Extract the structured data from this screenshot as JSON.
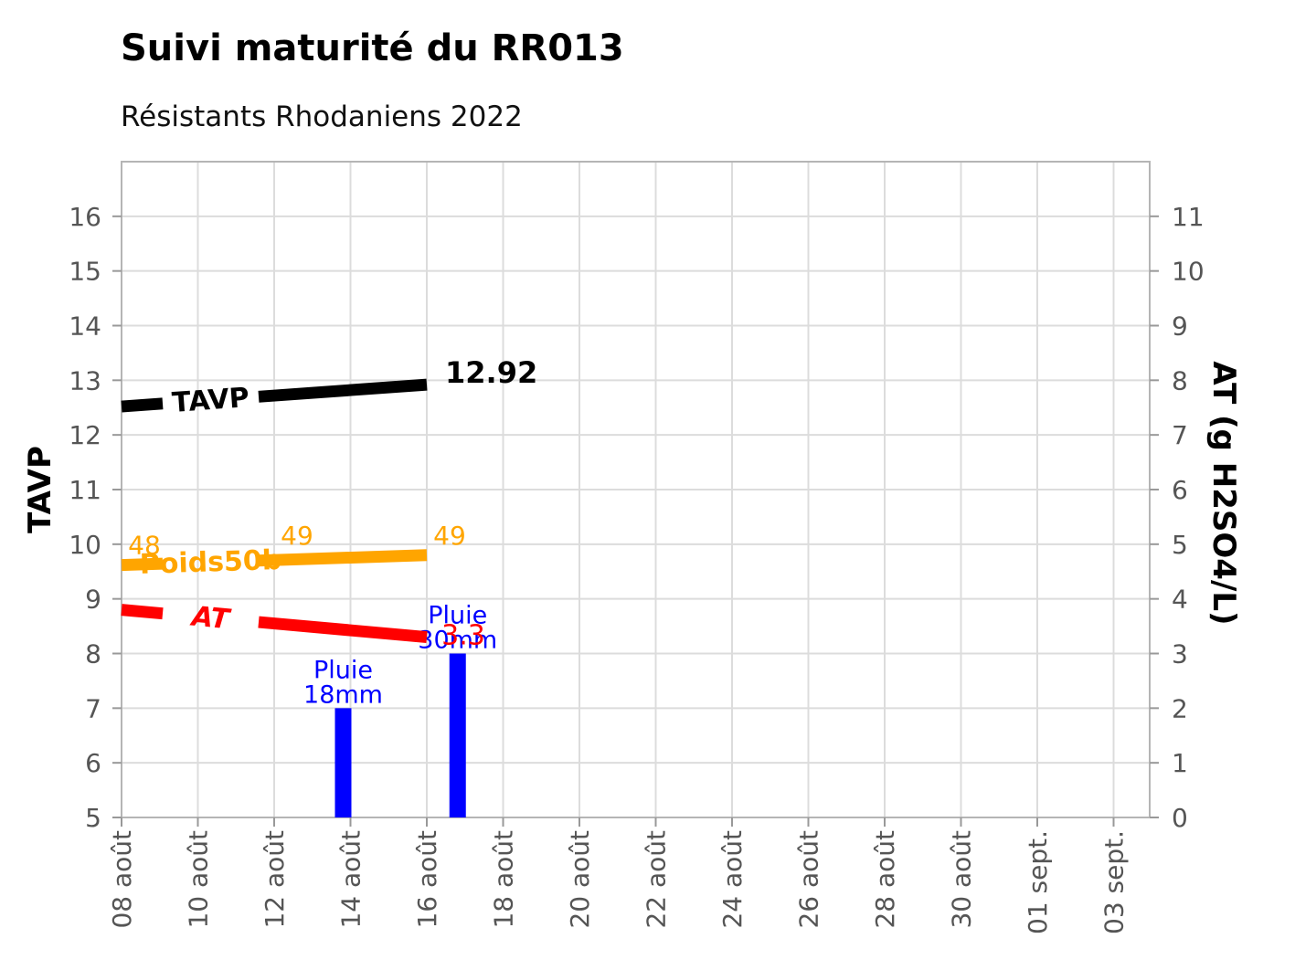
{
  "chart_data": {
    "type": "line",
    "title": "Suivi maturité du RR013",
    "subtitle": "Résistants Rhodaniens 2022",
    "ylabel": "TAVP",
    "y2label": "AT (g H2SO4/L)",
    "ylim": [
      5,
      17
    ],
    "y2lim": [
      0,
      12
    ],
    "yticks": [
      5,
      6,
      7,
      8,
      9,
      10,
      11,
      12,
      13,
      14,
      15,
      16
    ],
    "y2ticks": [
      0,
      1,
      2,
      3,
      4,
      5,
      6,
      7,
      8,
      9,
      10,
      11
    ],
    "xlim": [
      "2022-08-08",
      "2022-09-04"
    ],
    "xticks": [
      "2022-08-08",
      "2022-08-10",
      "2022-08-12",
      "2022-08-14",
      "2022-08-16",
      "2022-08-18",
      "2022-08-20",
      "2022-08-22",
      "2022-08-24",
      "2022-08-26",
      "2022-08-28",
      "2022-08-30",
      "2022-09-01",
      "2022-09-03"
    ],
    "xtick_labels": [
      "08 août",
      "10 août",
      "12 août",
      "14 août",
      "16 août",
      "18 août",
      "20 août",
      "22 août",
      "24 août",
      "26 août",
      "28 août",
      "30 août",
      "01 sept.",
      "03 sept."
    ],
    "grid": true,
    "series": [
      {
        "name": "TAVP",
        "axis": "left",
        "color": "#000000",
        "x": [
          "2022-08-08",
          "2022-08-16"
        ],
        "values": [
          12.52,
          12.92
        ],
        "end_label": "12.92"
      },
      {
        "name": "Poids50b",
        "axis": "left",
        "color": "#FFA500",
        "x": [
          "2022-08-08",
          "2022-08-12",
          "2022-08-16"
        ],
        "values": [
          9.62,
          9.8,
          9.8
        ],
        "point_labels": [
          "48",
          "49",
          "49"
        ]
      },
      {
        "name": "AT",
        "axis": "right",
        "color": "#FF0000",
        "x": [
          "2022-08-08",
          "2022-08-16"
        ],
        "values": [
          3.8,
          3.3
        ],
        "end_label": "3.3"
      }
    ],
    "bars": {
      "axis": "right",
      "color": "#0000FF",
      "x": [
        "2022-08-14",
        "2022-08-17"
      ],
      "values": [
        2,
        3
      ],
      "labels": [
        [
          "Pluie",
          "18mm"
        ],
        [
          "Pluie",
          "30mm"
        ]
      ]
    }
  }
}
